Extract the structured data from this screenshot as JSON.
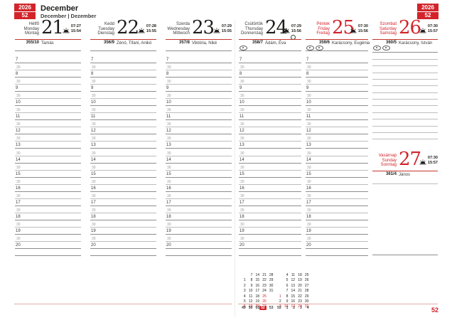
{
  "header": {
    "year": "2026",
    "week": "52",
    "month": "December",
    "subtitle": "December | Dezember"
  },
  "footer": {
    "page_number": "52"
  },
  "days": [
    {
      "names": [
        "Hétfő",
        "Monday",
        "Montag"
      ],
      "date": "21",
      "sunrise": "07:27",
      "sunset": "15:54",
      "ordinal": "355/10",
      "namedays": "Tamás",
      "red": false,
      "badges": [],
      "moon": false
    },
    {
      "names": [
        "Kedd",
        "Tuesday",
        "Dienstag"
      ],
      "date": "22",
      "sunrise": "07:28",
      "sunset": "15:55",
      "ordinal": "356/9",
      "namedays": "Zénó, Tifani, Anikó",
      "red": false,
      "badges": [],
      "moon": false
    },
    {
      "names": [
        "Szerda",
        "Wednesday",
        "Mittwoch"
      ],
      "date": "23",
      "sunrise": "07:29",
      "sunset": "15:55",
      "ordinal": "357/8",
      "namedays": "Viktória, Niké",
      "red": false,
      "badges": [],
      "moon": false
    },
    {
      "names": [
        "Csütörtök",
        "Thursday",
        "Donnerstag"
      ],
      "date": "24",
      "sunrise": "07:29",
      "sunset": "15:56",
      "ordinal": "358/7",
      "namedays": "Ádám, Éva",
      "red": false,
      "badges": [
        "oval-marker-icon"
      ],
      "moon": true
    },
    {
      "names": [
        "Péntek",
        "Friday",
        "Freitag"
      ],
      "date": "25",
      "sunrise": "07:30",
      "sunset": "15:56",
      "ordinal": "359/6",
      "namedays": "Karácsony, Eugénia",
      "red": true,
      "badges": [
        "oval-marker-icon",
        "oval-marker-icon"
      ],
      "moon": false
    },
    {
      "names": [
        "Szombat",
        "Saturday",
        "Samstag"
      ],
      "date": "26",
      "sunrise": "07:30",
      "sunset": "15:57",
      "ordinal": "360/5",
      "namedays": "Karácsony, István",
      "red": true,
      "badges": [
        "oval-marker-icon",
        "oval-marker-icon"
      ],
      "moon": false
    },
    {
      "names": [
        "Vasárnap",
        "Sunday",
        "Sonntag"
      ],
      "date": "27",
      "sunrise": "07:30",
      "sunset": "15:57",
      "ordinal": "361/4",
      "namedays": "János",
      "red": true,
      "badges": [],
      "moon": false
    }
  ],
  "grid": {
    "hours": [
      "7",
      "8",
      "9",
      "10",
      "11",
      "12",
      "13",
      "14",
      "15",
      "16",
      "17",
      "18",
      "19",
      "20"
    ],
    "half_label": "30"
  },
  "mini_calendar": {
    "months": [
      {
        "rows": [
          [
            "",
            "7",
            "14",
            "21",
            "28"
          ],
          [
            "1",
            "8",
            "15",
            "22",
            "29"
          ],
          [
            "2",
            "9",
            "16",
            "23",
            "30"
          ],
          [
            "3",
            "10",
            "17",
            "24",
            "31"
          ],
          [
            "4",
            "11",
            "18",
            "25",
            ""
          ],
          [
            "5",
            "12",
            "19",
            "26",
            ""
          ],
          [
            "6",
            "13",
            "20",
            "27",
            ""
          ]
        ],
        "red_cells": [
          [
            4,
            3
          ],
          [
            5,
            3
          ]
        ],
        "red_rows": [
          6
        ]
      },
      {
        "rows": [
          [
            "",
            "4",
            "11",
            "18",
            "25"
          ],
          [
            "",
            "5",
            "12",
            "19",
            "26"
          ],
          [
            "",
            "6",
            "13",
            "20",
            "27"
          ],
          [
            "",
            "7",
            "14",
            "21",
            "28"
          ],
          [
            "1",
            "8",
            "15",
            "22",
            "29"
          ],
          [
            "2",
            "9",
            "16",
            "23",
            "30"
          ],
          [
            "3",
            "10",
            "17",
            "24",
            "31"
          ]
        ],
        "red_cells": [
          [
            4,
            0
          ]
        ],
        "red_rows": [
          6
        ]
      }
    ],
    "week_numbers": [
      "49",
      "50",
      "51",
      "52",
      "53",
      "53",
      "1",
      "2",
      "3",
      "4"
    ],
    "highlighted_week_index": 3
  },
  "colors": {
    "accent_red": "#d2232a",
    "line_gray": "#8d8d8d",
    "half_line_gray": "#bdbdbd",
    "footer_line_pink": "#e3aaa4"
  }
}
